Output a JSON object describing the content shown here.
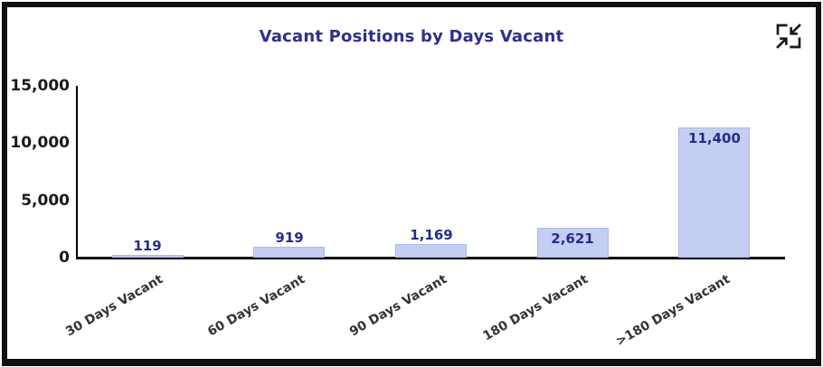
{
  "window": {
    "background": "#ffffff",
    "frame_color": "#0f0f0f"
  },
  "header": {
    "title_color": "#2d2f8f",
    "collapse_icon_color": "#1a1a1a"
  },
  "chart_data": {
    "type": "bar",
    "title": "Vacant Positions by Days Vacant",
    "categories": [
      "30 Days Vacant",
      "60 Days Vacant",
      "90 Days Vacant",
      "180 Days Vacant",
      ">180 Days Vacant"
    ],
    "values": [
      119,
      919,
      1169,
      2621,
      11400
    ],
    "value_labels": [
      "119",
      "919",
      "1,169",
      "2,621",
      "11,400"
    ],
    "xlabel": "",
    "ylabel": "",
    "ylim": [
      0,
      15000
    ],
    "y_ticks": [
      0,
      5000,
      10000,
      15000
    ],
    "y_tick_labels": [
      "0",
      "5,000",
      "10,000",
      "15,000"
    ],
    "grid": false,
    "legend": false,
    "bar_color": "#c4cdf2",
    "bar_border_color": "#aab8ec",
    "value_label_color": "#232e8a",
    "axis_color": "#000000",
    "y_tick_label_color": "#1a1a1a",
    "category_label_color": "#333333"
  }
}
